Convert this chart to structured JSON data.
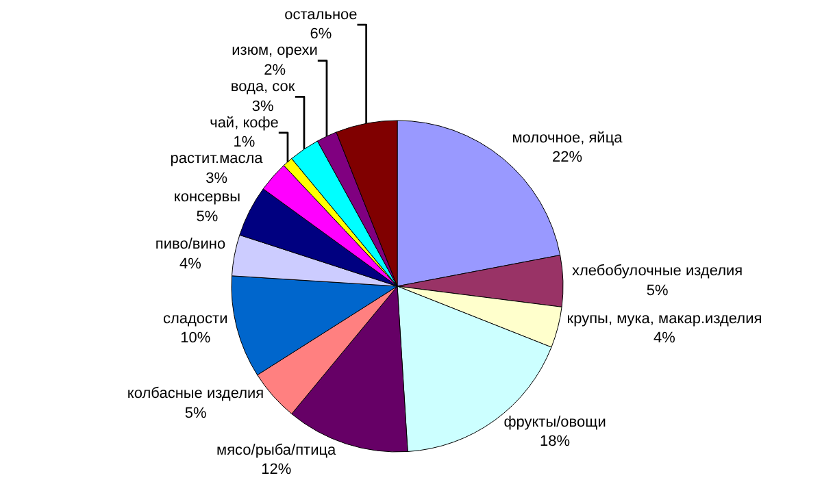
{
  "chart_data": {
    "type": "pie",
    "categories": [
      "молочное, яйца",
      "хлебобулочные изделия",
      "крупы, мука, макар.изделия",
      "фрукты/овощи",
      "мясо/рыба/птица",
      "колбасные изделия",
      "сладости",
      "пиво/вино",
      "консервы",
      "растит.масла",
      "чай, кофе",
      "вода, сок",
      "изюм, орехи",
      "остальное"
    ],
    "values": [
      22,
      5,
      4,
      18,
      12,
      5,
      10,
      4,
      5,
      3,
      1,
      3,
      2,
      6
    ],
    "value_labels": [
      "22%",
      "5%",
      "4%",
      "18%",
      "12%",
      "5%",
      "10%",
      "4%",
      "5%",
      "3%",
      "1%",
      "3%",
      "2%",
      "6%"
    ],
    "colors": [
      "#9999ff",
      "#993366",
      "#ffffcc",
      "#ccffff",
      "#660066",
      "#ff8080",
      "#0066cc",
      "#ccccff",
      "#000080",
      "#ff00ff",
      "#ffff00",
      "#00ffff",
      "#800080",
      "#800000"
    ],
    "legend": false
  }
}
